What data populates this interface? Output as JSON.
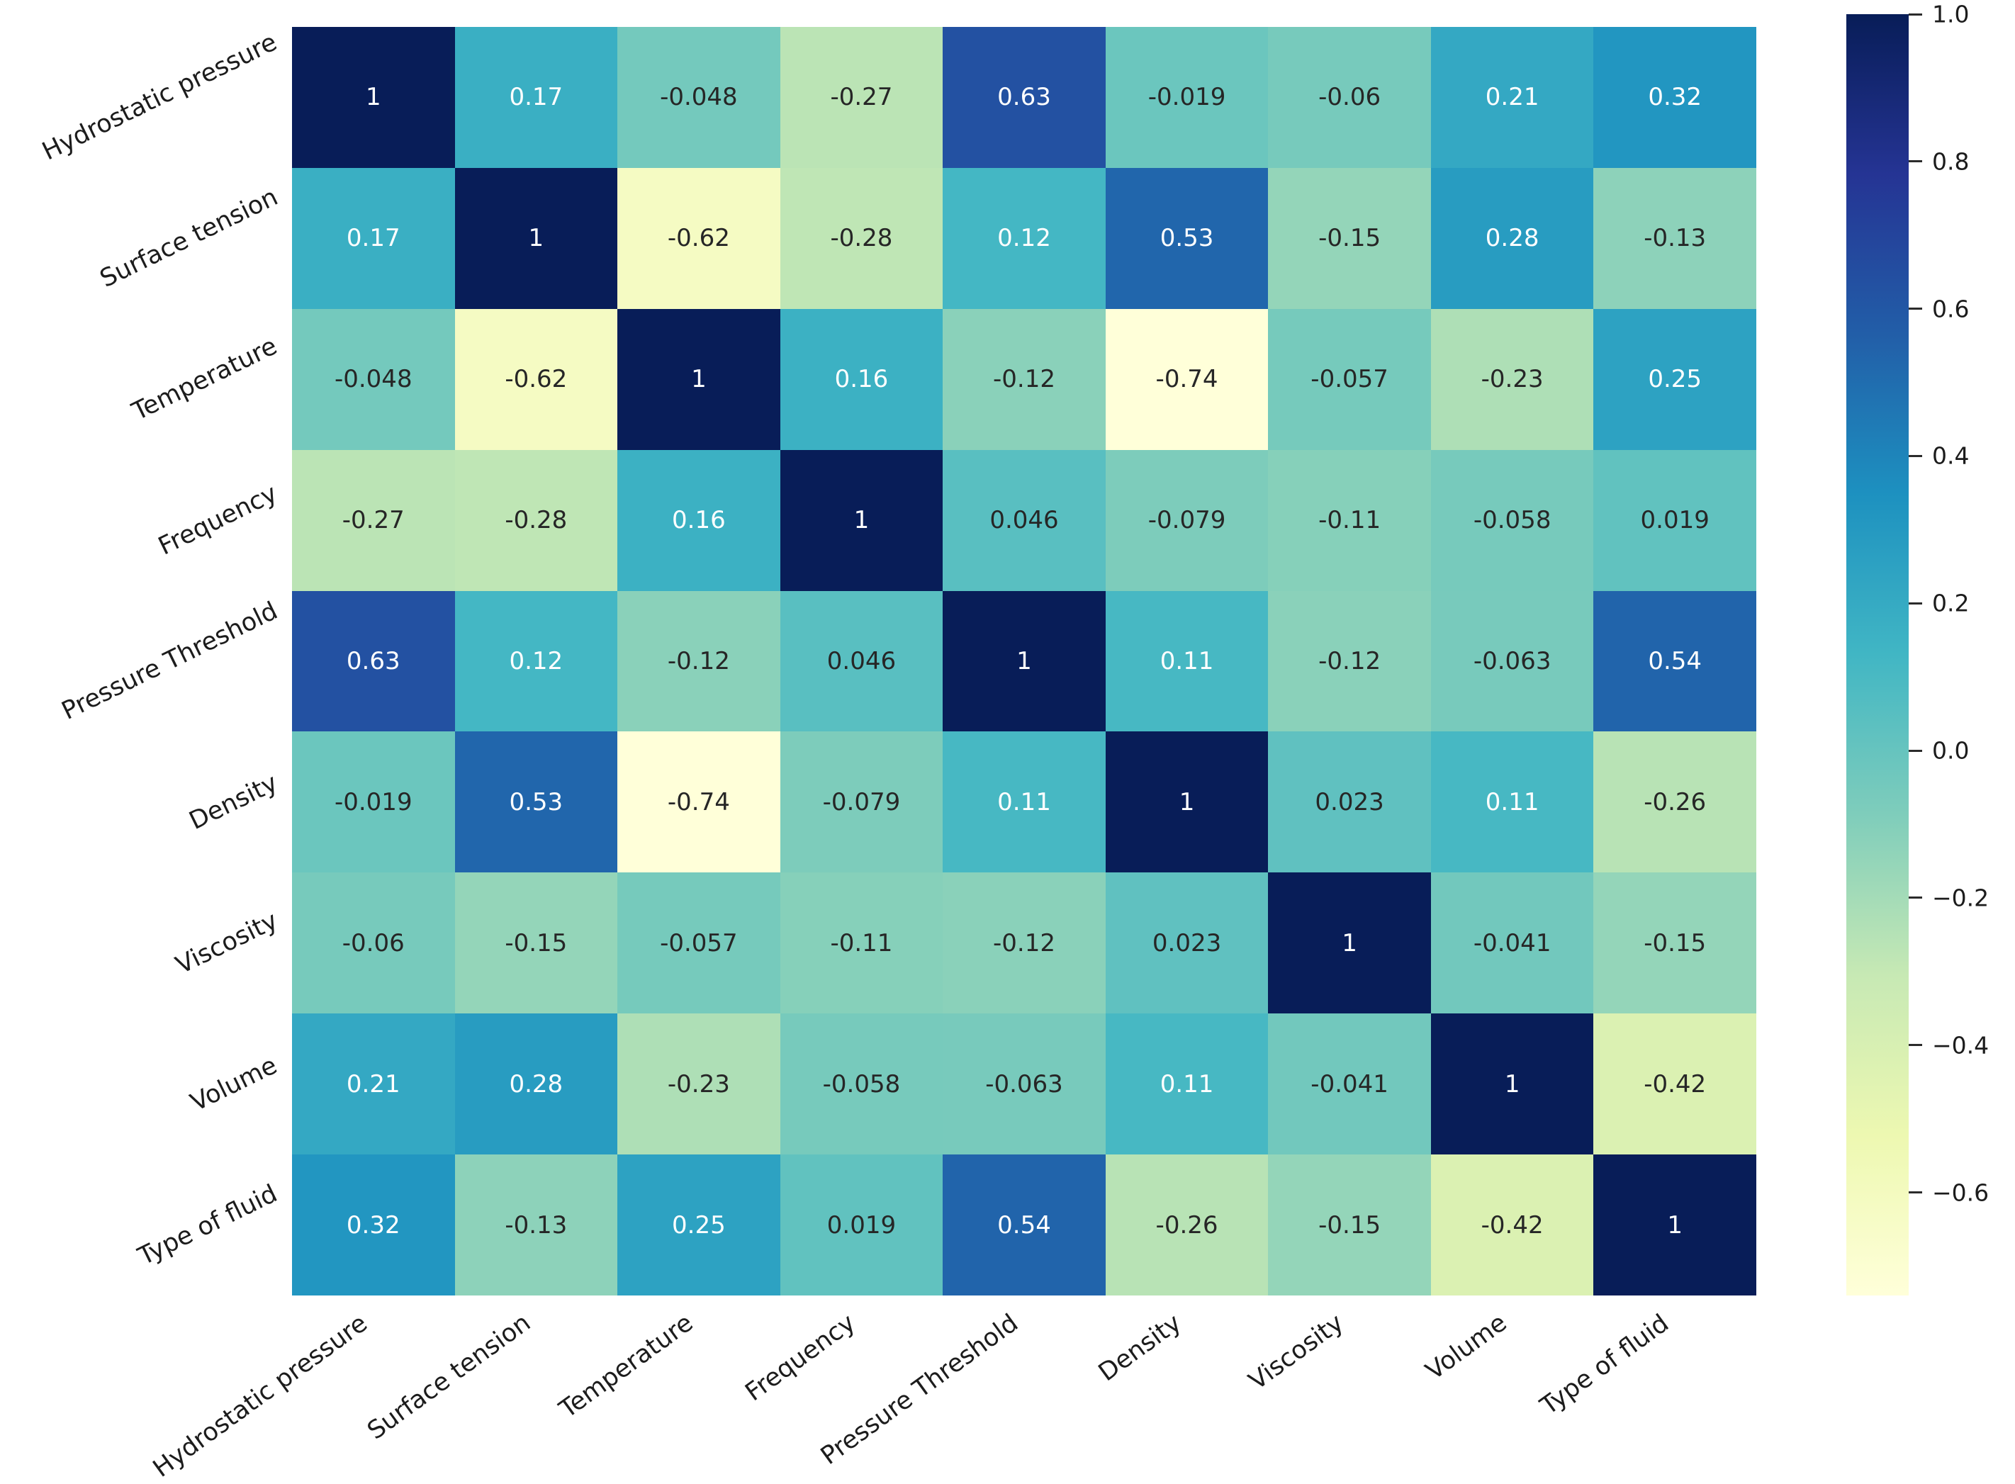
{
  "chart_data": {
    "type": "heatmap",
    "title": "",
    "labels": [
      "Hydrostatic pressure",
      "Surface tension",
      "Temperature",
      "Frequency",
      "Pressure Threshold",
      "Density",
      "Viscosity",
      "Volume",
      "Type of fluid"
    ],
    "x_labels": [
      "Hydrostatic pressure",
      "Surface tension",
      "Temperature",
      "Frequency",
      "Pressure Threshold",
      "Density",
      "Viscosity",
      "Volume",
      "Type of fluid"
    ],
    "y_labels": [
      "Hydrostatic pressure",
      "Surface tension",
      "Temperature",
      "Frequency",
      "Pressure Threshold",
      "Density",
      "Viscosity",
      "Volume",
      "Type of fluid"
    ],
    "matrix": [
      [
        1,
        0.17,
        -0.048,
        -0.27,
        0.63,
        -0.019,
        -0.06,
        0.21,
        0.32
      ],
      [
        0.17,
        1,
        -0.62,
        -0.28,
        0.12,
        0.53,
        -0.15,
        0.28,
        -0.13
      ],
      [
        -0.048,
        -0.62,
        1,
        0.16,
        -0.12,
        -0.74,
        -0.057,
        -0.23,
        0.25
      ],
      [
        -0.27,
        -0.28,
        0.16,
        1,
        0.046,
        -0.079,
        -0.11,
        -0.058,
        0.019
      ],
      [
        0.63,
        0.12,
        -0.12,
        0.046,
        1,
        0.11,
        -0.12,
        -0.063,
        0.54
      ],
      [
        -0.019,
        0.53,
        -0.74,
        -0.079,
        0.11,
        1,
        0.023,
        0.11,
        -0.26
      ],
      [
        -0.06,
        -0.15,
        -0.057,
        -0.11,
        -0.12,
        0.023,
        1,
        -0.041,
        -0.15
      ],
      [
        0.21,
        0.28,
        -0.23,
        -0.058,
        -0.063,
        0.11,
        -0.041,
        1,
        -0.42
      ],
      [
        0.32,
        -0.13,
        0.25,
        0.019,
        0.54,
        -0.26,
        -0.15,
        -0.42,
        1
      ]
    ],
    "display": [
      [
        "1",
        "0.17",
        "-0.048",
        "-0.27",
        "0.63",
        "-0.019",
        "-0.06",
        "0.21",
        "0.32"
      ],
      [
        "0.17",
        "1",
        "-0.62",
        "-0.28",
        "0.12",
        "0.53",
        "-0.15",
        "0.28",
        "-0.13"
      ],
      [
        "-0.048",
        "-0.62",
        "1",
        "0.16",
        "-0.12",
        "-0.74",
        "-0.057",
        "-0.23",
        "0.25"
      ],
      [
        "-0.27",
        "-0.28",
        "0.16",
        "1",
        "0.046",
        "-0.079",
        "-0.11",
        "-0.058",
        "0.019"
      ],
      [
        "0.63",
        "0.12",
        "-0.12",
        "0.046",
        "1",
        "0.11",
        "-0.12",
        "-0.063",
        "0.54"
      ],
      [
        "-0.019",
        "0.53",
        "-0.74",
        "-0.079",
        "0.11",
        "1",
        "0.023",
        "0.11",
        "-0.26"
      ],
      [
        "-0.06",
        "-0.15",
        "-0.057",
        "-0.11",
        "-0.12",
        "0.023",
        "1",
        "-0.041",
        "-0.15"
      ],
      [
        "0.21",
        "0.28",
        "-0.23",
        "-0.058",
        "-0.063",
        "0.11",
        "-0.041",
        "1",
        "-0.42"
      ],
      [
        "0.32",
        "-0.13",
        "0.25",
        "0.019",
        "0.54",
        "-0.26",
        "-0.15",
        "-0.42",
        "1"
      ]
    ],
    "vmin": -0.74,
    "vmax": 1.0,
    "colormap": {
      "name": "YlGnBu",
      "anchors": [
        "#ffffd9",
        "#edf8b1",
        "#c7e9b4",
        "#7fcdbb",
        "#41b6c4",
        "#1d91c0",
        "#225ea8",
        "#253494",
        "#081d58"
      ]
    },
    "annotation_colors": {
      "dark": "#262626",
      "light": "#ffffff"
    },
    "colorbar": {
      "ticks": [
        {
          "label": "1.0",
          "value": 1.0
        },
        {
          "label": "0.8",
          "value": 0.8
        },
        {
          "label": "0.6",
          "value": 0.6
        },
        {
          "label": "0.4",
          "value": 0.4
        },
        {
          "label": "0.2",
          "value": 0.2
        },
        {
          "label": "0.0",
          "value": 0.0
        },
        {
          "label": "−0.2",
          "value": -0.2
        },
        {
          "label": "−0.4",
          "value": -0.4
        },
        {
          "label": "−0.6",
          "value": -0.6
        }
      ],
      "position": "right"
    },
    "legend": null,
    "grid_lines": false
  }
}
